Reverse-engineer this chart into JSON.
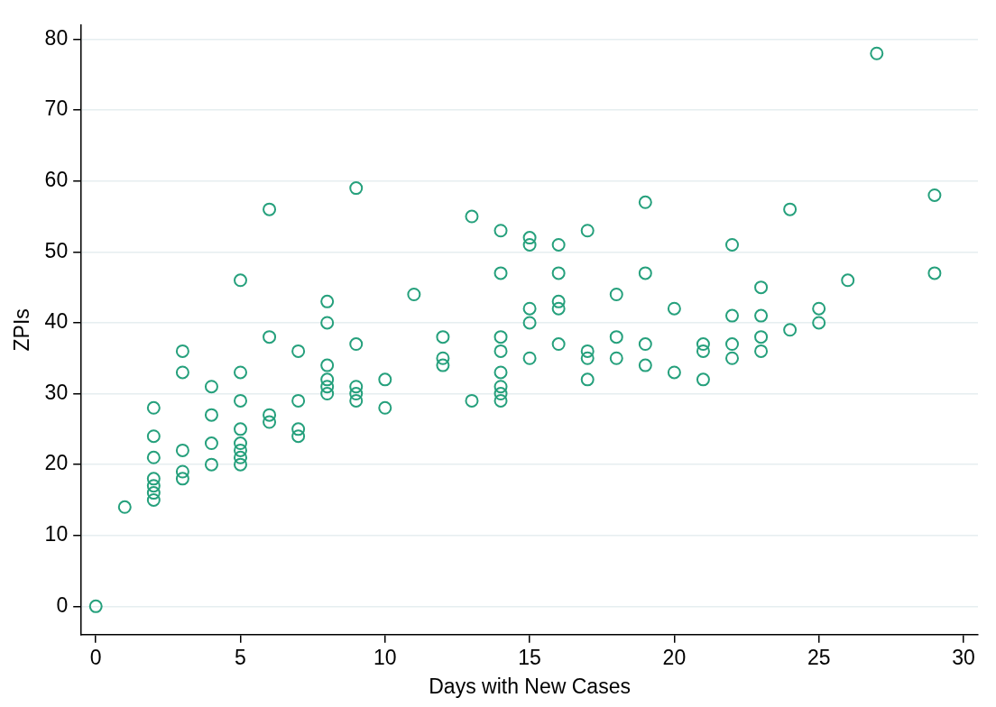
{
  "chart_data": {
    "type": "scatter",
    "xlabel": "Days with New Cases",
    "ylabel": "ZPIs",
    "xlim": [
      -0.5,
      30.5
    ],
    "xticks": [
      0,
      5,
      10,
      15,
      20,
      25,
      30
    ],
    "ylim": [
      -4,
      82
    ],
    "yticks": [
      0,
      10,
      20,
      30,
      40,
      50,
      60,
      70,
      80
    ],
    "grid": "y",
    "marker": "circle",
    "legend": false,
    "series": [
      {
        "color": "#25a07c",
        "x": [
          0,
          1,
          2,
          2,
          2,
          2,
          2,
          2,
          2,
          3,
          3,
          3,
          3,
          3,
          4,
          4,
          4,
          4,
          5,
          5,
          5,
          5,
          5,
          5,
          5,
          5,
          6,
          6,
          6,
          6,
          7,
          7,
          7,
          7,
          8,
          8,
          8,
          8,
          8,
          8,
          9,
          9,
          9,
          9,
          9,
          10,
          10,
          11,
          12,
          12,
          12,
          13,
          13,
          14,
          14,
          14,
          14,
          14,
          14,
          14,
          14,
          15,
          15,
          15,
          15,
          15,
          16,
          16,
          16,
          16,
          16,
          17,
          17,
          17,
          17,
          18,
          18,
          18,
          19,
          19,
          19,
          19,
          20,
          20,
          21,
          21,
          21,
          22,
          22,
          22,
          22,
          23,
          23,
          23,
          23,
          24,
          24,
          25,
          25,
          26,
          27,
          29,
          29
        ],
        "values": [
          0,
          14,
          28,
          24,
          21,
          18,
          17,
          16,
          15,
          36,
          33,
          22,
          19,
          18,
          31,
          27,
          23,
          20,
          46,
          33,
          29,
          25,
          23,
          22,
          21,
          20,
          56,
          38,
          27,
          26,
          36,
          29,
          25,
          24,
          43,
          40,
          34,
          32,
          31,
          30,
          59,
          37,
          31,
          30,
          29,
          32,
          28,
          44,
          38,
          35,
          34,
          55,
          29,
          53,
          47,
          38,
          36,
          33,
          31,
          30,
          29,
          52,
          51,
          42,
          40,
          35,
          51,
          47,
          43,
          42,
          37,
          53,
          36,
          35,
          32,
          44,
          38,
          35,
          57,
          47,
          37,
          34,
          42,
          33,
          37,
          36,
          32,
          51,
          41,
          37,
          35,
          45,
          41,
          38,
          36,
          56,
          39,
          42,
          40,
          46,
          78,
          58,
          47
        ]
      }
    ]
  }
}
